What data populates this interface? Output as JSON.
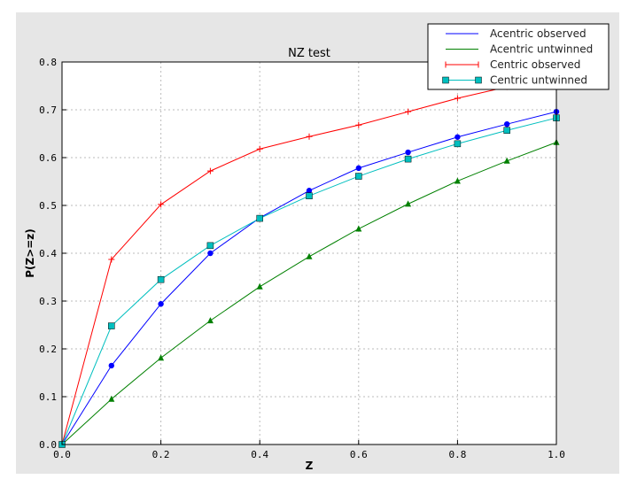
{
  "chart_data": {
    "type": "line",
    "title": "NZ test",
    "xlabel": "Z",
    "ylabel": "P(Z>=z)",
    "xlim": [
      0.0,
      1.0
    ],
    "ylim": [
      0.0,
      0.8
    ],
    "xticks": [
      "0.0",
      "0.2",
      "0.4",
      "0.6",
      "0.8",
      "1.0"
    ],
    "yticks": [
      "0.0",
      "0.1",
      "0.2",
      "0.3",
      "0.4",
      "0.5",
      "0.6",
      "0.7",
      "0.8"
    ],
    "grid": true,
    "legend_placement": "top-right",
    "x": [
      0.0,
      0.1,
      0.2,
      0.3,
      0.4,
      0.5,
      0.6,
      0.7,
      0.8,
      0.9,
      1.0
    ],
    "series": [
      {
        "name": "Acentric observed",
        "color": "#0000ff",
        "marker": "circle",
        "values": [
          0.0,
          0.165,
          0.294,
          0.4,
          0.474,
          0.531,
          0.578,
          0.611,
          0.643,
          0.67,
          0.696
        ]
      },
      {
        "name": "Acentric untwinned",
        "color": "#008000",
        "marker": "triangle",
        "values": [
          0.0,
          0.095,
          0.181,
          0.259,
          0.33,
          0.393,
          0.451,
          0.503,
          0.551,
          0.593,
          0.632
        ]
      },
      {
        "name": "Centric observed",
        "color": "#ff0000",
        "marker": "plus",
        "values": [
          0.0,
          0.387,
          0.502,
          0.572,
          0.618,
          0.644,
          0.668,
          0.696,
          0.724,
          0.748,
          0.77
        ]
      },
      {
        "name": "Centric untwinned",
        "color": "#00bfbf",
        "marker": "square",
        "values": [
          0.0,
          0.248,
          0.345,
          0.416,
          0.473,
          0.52,
          0.561,
          0.597,
          0.629,
          0.657,
          0.683
        ]
      }
    ]
  }
}
